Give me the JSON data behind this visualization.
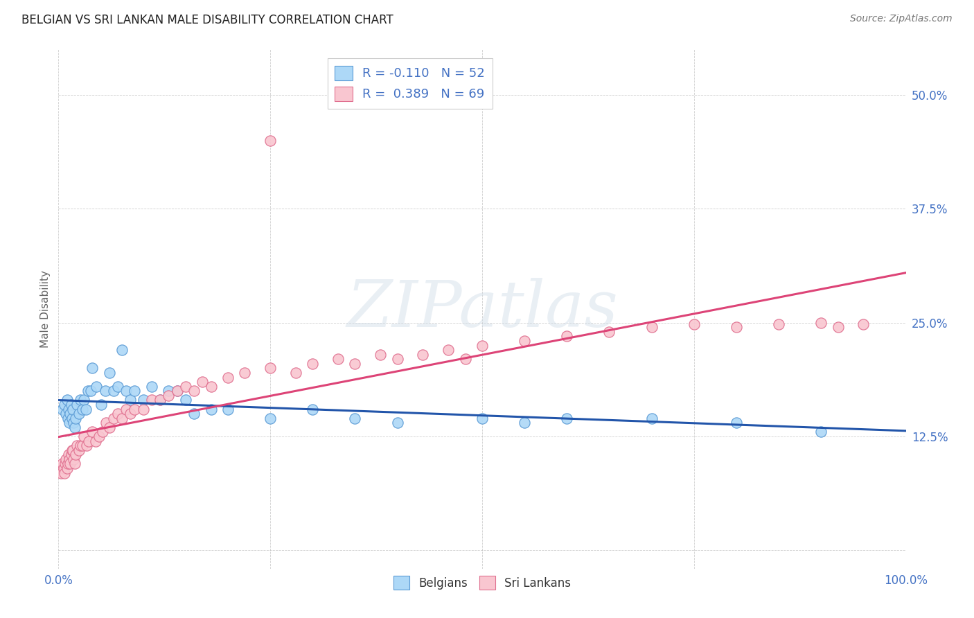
{
  "title": "BELGIAN VS SRI LANKAN MALE DISABILITY CORRELATION CHART",
  "source": "Source: ZipAtlas.com",
  "ylabel": "Male Disability",
  "background_color": "#ffffff",
  "xlim": [
    0.0,
    1.0
  ],
  "ylim": [
    -0.02,
    0.55
  ],
  "yticks": [
    0.0,
    0.125,
    0.25,
    0.375,
    0.5
  ],
  "ytick_labels": [
    "",
    "12.5%",
    "25.0%",
    "37.5%",
    "50.0%"
  ],
  "xticks": [
    0.0,
    0.25,
    0.5,
    0.75,
    1.0
  ],
  "xtick_labels": [
    "0.0%",
    "",
    "",
    "",
    "100.0%"
  ],
  "blue_fill": "#ADD8F7",
  "blue_edge": "#5B9BD5",
  "pink_fill": "#F9C6D0",
  "pink_edge": "#E07090",
  "blue_line_color": "#2255AA",
  "pink_line_color": "#DD4477",
  "axis_tick_color": "#4472C4",
  "title_color": "#222222",
  "source_color": "#777777",
  "watermark_text": "ZIPatlas",
  "legend_R_blue": "R = -0.110",
  "legend_N_blue": "N = 52",
  "legend_R_pink": "R =  0.389",
  "legend_N_pink": "N = 69",
  "legend_text_color": "#4472C4",
  "belgians_x": [
    0.005,
    0.007,
    0.009,
    0.01,
    0.011,
    0.012,
    0.013,
    0.014,
    0.015,
    0.016,
    0.017,
    0.018,
    0.019,
    0.02,
    0.022,
    0.024,
    0.026,
    0.028,
    0.03,
    0.032,
    0.035,
    0.038,
    0.04,
    0.045,
    0.05,
    0.055,
    0.06,
    0.065,
    0.07,
    0.075,
    0.08,
    0.085,
    0.09,
    0.1,
    0.11,
    0.12,
    0.13,
    0.14,
    0.15,
    0.16,
    0.18,
    0.2,
    0.25,
    0.3,
    0.35,
    0.4,
    0.5,
    0.55,
    0.6,
    0.7,
    0.8,
    0.9
  ],
  "belgians_y": [
    0.155,
    0.16,
    0.15,
    0.165,
    0.145,
    0.155,
    0.14,
    0.15,
    0.16,
    0.145,
    0.155,
    0.14,
    0.135,
    0.145,
    0.16,
    0.15,
    0.165,
    0.155,
    0.165,
    0.155,
    0.175,
    0.175,
    0.2,
    0.18,
    0.16,
    0.175,
    0.195,
    0.175,
    0.18,
    0.22,
    0.175,
    0.165,
    0.175,
    0.165,
    0.18,
    0.165,
    0.175,
    0.175,
    0.165,
    0.15,
    0.155,
    0.155,
    0.145,
    0.155,
    0.145,
    0.14,
    0.145,
    0.14,
    0.145,
    0.145,
    0.14,
    0.13
  ],
  "srilankans_x": [
    0.003,
    0.005,
    0.006,
    0.007,
    0.008,
    0.009,
    0.01,
    0.011,
    0.012,
    0.013,
    0.014,
    0.015,
    0.016,
    0.017,
    0.018,
    0.019,
    0.02,
    0.022,
    0.024,
    0.026,
    0.028,
    0.03,
    0.033,
    0.036,
    0.04,
    0.044,
    0.048,
    0.052,
    0.056,
    0.06,
    0.065,
    0.07,
    0.075,
    0.08,
    0.085,
    0.09,
    0.1,
    0.11,
    0.12,
    0.13,
    0.14,
    0.15,
    0.16,
    0.17,
    0.18,
    0.2,
    0.22,
    0.25,
    0.28,
    0.3,
    0.33,
    0.35,
    0.38,
    0.4,
    0.43,
    0.46,
    0.5,
    0.55,
    0.6,
    0.65,
    0.7,
    0.75,
    0.8,
    0.85,
    0.9,
    0.92,
    0.95,
    0.25,
    0.48
  ],
  "srilankans_y": [
    0.085,
    0.095,
    0.09,
    0.085,
    0.095,
    0.1,
    0.09,
    0.095,
    0.105,
    0.1,
    0.095,
    0.105,
    0.11,
    0.11,
    0.1,
    0.095,
    0.105,
    0.115,
    0.11,
    0.115,
    0.115,
    0.125,
    0.115,
    0.12,
    0.13,
    0.12,
    0.125,
    0.13,
    0.14,
    0.135,
    0.145,
    0.15,
    0.145,
    0.155,
    0.15,
    0.155,
    0.155,
    0.165,
    0.165,
    0.17,
    0.175,
    0.18,
    0.175,
    0.185,
    0.18,
    0.19,
    0.195,
    0.2,
    0.195,
    0.205,
    0.21,
    0.205,
    0.215,
    0.21,
    0.215,
    0.22,
    0.225,
    0.23,
    0.235,
    0.24,
    0.245,
    0.248,
    0.245,
    0.248,
    0.25,
    0.245,
    0.248,
    0.45,
    0.21
  ]
}
